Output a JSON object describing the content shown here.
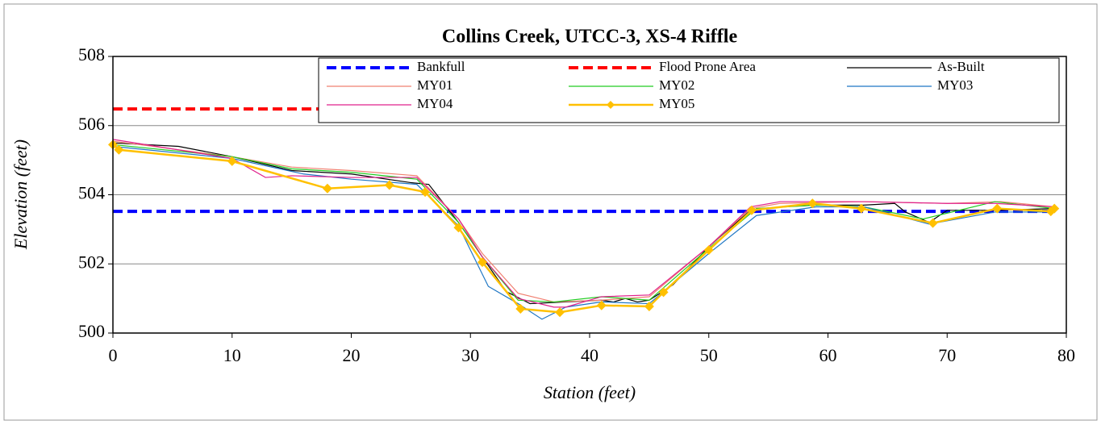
{
  "chart_data": {
    "type": "line",
    "title": "Collins Creek, UTCC-3, XS-4 Riffle",
    "x_label": "Station (feet)",
    "y_label": "Elevation (feet)",
    "xlim": [
      0,
      80
    ],
    "xticks": [
      0,
      10,
      20,
      30,
      40,
      50,
      60,
      70,
      80
    ],
    "ylim": [
      500,
      508
    ],
    "yticks": [
      500,
      502,
      504,
      506,
      508
    ],
    "grid": true,
    "legend": "top-right",
    "series": [
      {
        "name": "Bankfull",
        "color": "#0000ff",
        "style": "dashed",
        "x": [
          0,
          79
        ],
        "values": [
          503.52,
          503.52
        ]
      },
      {
        "name": "Flood Prone Area",
        "color": "#ff0000",
        "style": "dashed",
        "x": [
          0,
          79
        ],
        "values": [
          506.48,
          506.48
        ]
      },
      {
        "name": "As-Built",
        "color": "#000000",
        "style": "solid",
        "x": [
          0,
          5.5,
          10,
          15,
          20,
          25,
          26.5,
          29,
          31,
          33,
          35,
          38,
          41,
          42,
          43,
          44,
          45,
          47,
          50,
          53.5,
          56,
          59,
          63,
          65.6,
          66.5,
          68.5,
          70,
          74,
          79
        ],
        "values": [
          505.5,
          505.4,
          505.1,
          504.7,
          504.6,
          504.35,
          504.3,
          503.2,
          502.2,
          501.2,
          500.85,
          500.9,
          500.95,
          500.9,
          501.0,
          500.9,
          500.95,
          501.4,
          502.5,
          503.55,
          503.65,
          503.7,
          503.7,
          503.75,
          503.5,
          503.2,
          503.55,
          503.55,
          503.6
        ]
      },
      {
        "name": "MY01",
        "color": "#f08070",
        "style": "solid",
        "x": [
          0,
          10,
          15,
          20,
          25.5,
          29,
          31,
          34,
          37,
          41,
          45,
          50,
          53.5,
          56,
          63,
          70,
          74.5,
          79
        ],
        "values": [
          505.55,
          505.1,
          504.8,
          504.7,
          504.55,
          503.3,
          502.3,
          501.15,
          500.9,
          500.95,
          501.05,
          502.5,
          503.6,
          503.75,
          503.8,
          503.75,
          503.8,
          503.65
        ]
      },
      {
        "name": "MY02",
        "color": "#22cc22",
        "style": "solid",
        "x": [
          0,
          10,
          15,
          20,
          25.5,
          29,
          31,
          34,
          37,
          41,
          45,
          50,
          54,
          59,
          63,
          68,
          74,
          79
        ],
        "values": [
          505.45,
          505.1,
          504.75,
          504.65,
          504.45,
          503.2,
          502.2,
          500.95,
          500.9,
          501.05,
          500.95,
          502.45,
          503.6,
          503.7,
          503.65,
          503.3,
          503.8,
          503.6
        ]
      },
      {
        "name": "MY03",
        "color": "#1f77c4",
        "style": "solid",
        "x": [
          0,
          10,
          16,
          20,
          25.5,
          29,
          31.5,
          34,
          36,
          38,
          41,
          45,
          50,
          54,
          59,
          63,
          68.5,
          74,
          79
        ],
        "values": [
          505.4,
          505.05,
          504.6,
          504.45,
          504.3,
          503.1,
          501.35,
          500.85,
          500.4,
          500.75,
          500.9,
          500.85,
          502.3,
          503.4,
          503.65,
          503.65,
          503.15,
          503.5,
          503.5
        ]
      },
      {
        "name": "MY04",
        "color": "#e0208c",
        "style": "solid",
        "x": [
          0,
          10,
          12.8,
          15,
          20,
          25.5,
          29,
          31,
          34,
          37,
          38,
          41,
          45,
          50,
          53.5,
          56,
          63,
          70,
          74,
          79
        ],
        "values": [
          505.6,
          505.05,
          504.5,
          504.55,
          504.5,
          504.5,
          503.3,
          502.2,
          501.0,
          500.75,
          500.75,
          501.05,
          501.1,
          502.5,
          503.65,
          503.8,
          503.8,
          503.75,
          503.75,
          503.65
        ]
      },
      {
        "name": "MY05",
        "color": "#ffc000",
        "style": "solid",
        "marker": "diamond",
        "x": [
          0,
          0.5,
          10,
          18,
          23.2,
          26.2,
          29,
          31,
          34.2,
          37.5,
          41,
          45,
          46.2,
          50,
          53.6,
          58.7,
          62.8,
          68.8,
          74.2,
          78.7,
          79
        ],
        "values": [
          505.45,
          505.3,
          504.97,
          504.18,
          504.28,
          504.08,
          503.05,
          502.05,
          500.7,
          500.6,
          500.8,
          500.77,
          501.18,
          502.4,
          503.55,
          503.75,
          503.6,
          503.18,
          503.6,
          503.52,
          503.6
        ]
      }
    ]
  }
}
